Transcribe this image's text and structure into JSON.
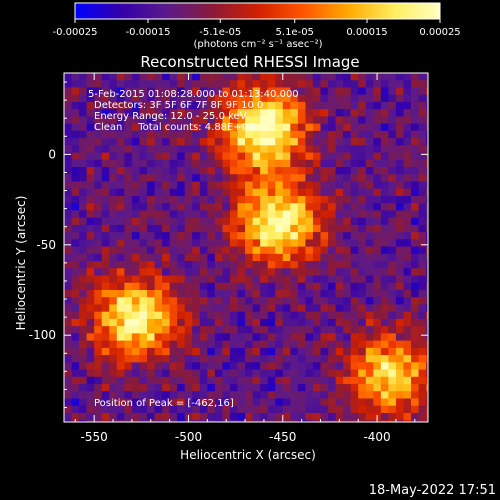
{
  "chart_data": {
    "type": "heatmap",
    "title": "Reconstructed RHESSI Image",
    "xlabel": "Heliocentric X (arcsec)",
    "ylabel": "Heliocentric Y (arcsec)",
    "xlim": [
      -566,
      -373
    ],
    "ylim": [
      -148,
      45
    ],
    "x_ticks": [
      -550,
      -500,
      -450,
      -400
    ],
    "y_ticks": [
      0,
      -50,
      -100
    ],
    "x_tick_labels": [
      "-550",
      "-500",
      "-450",
      "-400"
    ],
    "y_tick_labels": [
      "0",
      "-50",
      "-100"
    ],
    "colorbar": {
      "min": -0.00025,
      "max": 0.00025,
      "tick_labels": [
        "-0.00025",
        "-0.00015",
        "-5.1e-05",
        "5.1e-05",
        "0.00015",
        "0.00025"
      ],
      "tick_values": [
        -0.00025,
        -0.00015,
        -5.1e-05,
        5.1e-05,
        0.00015,
        0.00025
      ],
      "units": "(photons cm⁻² s⁻¹ asec⁻²)",
      "colormap": [
        "#0000ff",
        "#3300aa",
        "#5a1a8c",
        "#8a1a3a",
        "#d02000",
        "#ff5500",
        "#ffaa00",
        "#ffee60",
        "#ffffc0"
      ]
    },
    "annotations": {
      "time": "5-Feb-2015 01:08:28.000 to 01:13:40.000",
      "detectors": "Detectors: 3F 5F 6F 7F 8F 9F 10 0",
      "energy": "Energy Range: 12.0 - 25.0 keV",
      "clean": "Clean     Total counts: 4.88E+05",
      "peak": "Position of Peak = [-462,16]"
    },
    "sources": [
      {
        "x": -462,
        "y": 16,
        "intensity": 1.0
      },
      {
        "x": -455,
        "y": -35,
        "intensity": 0.95
      },
      {
        "x": -530,
        "y": -88,
        "intensity": 0.9
      },
      {
        "x": -395,
        "y": -120,
        "intensity": 0.8
      }
    ]
  },
  "footer": {
    "timestamp": "18-May-2022 17:51"
  }
}
